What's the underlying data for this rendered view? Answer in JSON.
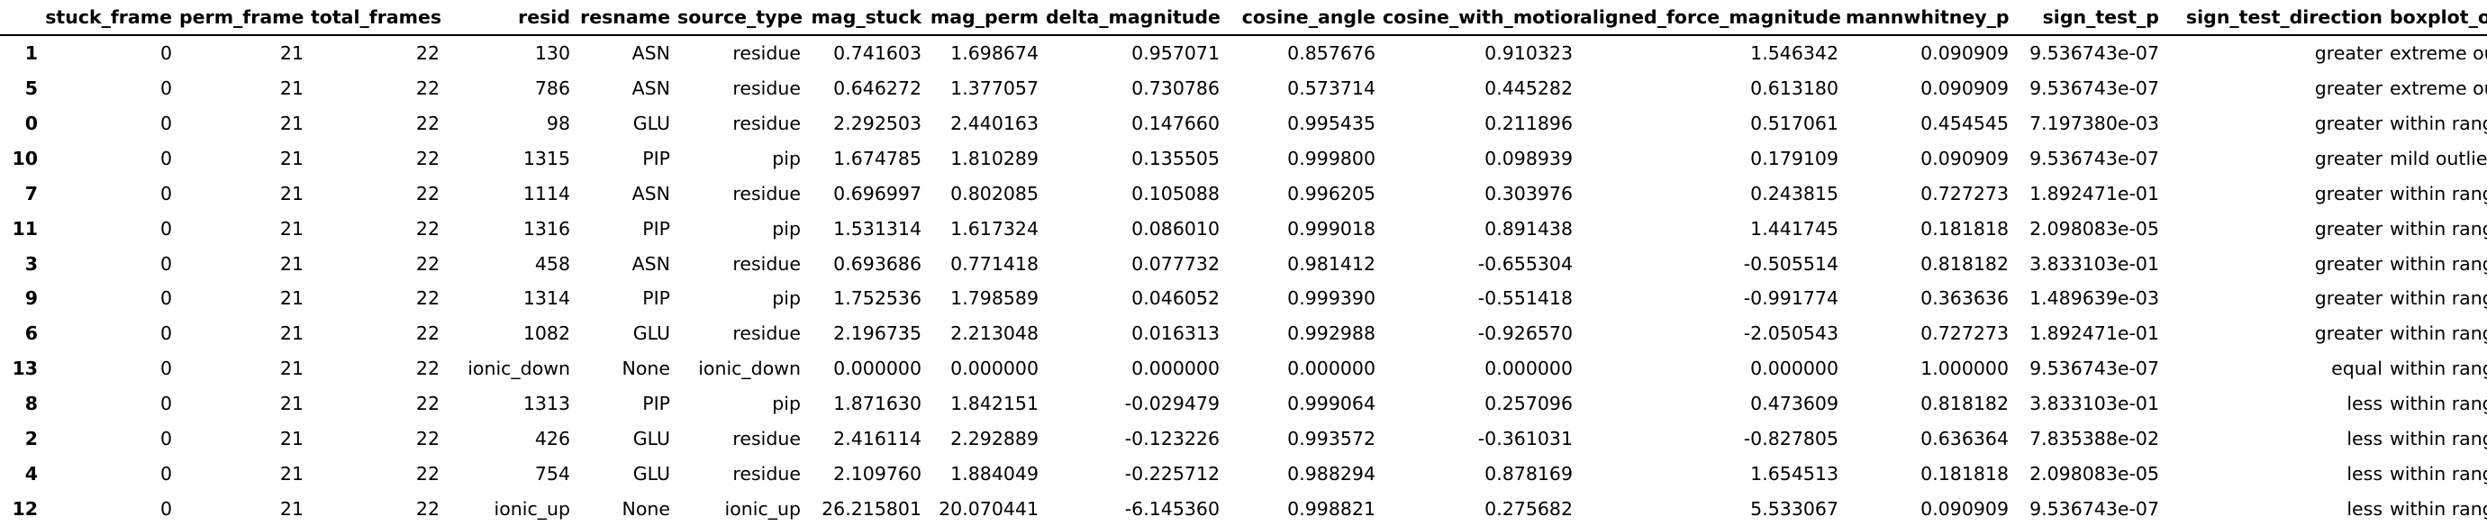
{
  "columns": [
    "",
    "stuck_frame",
    "perm_frame",
    "total_frames",
    "resid",
    "resname",
    "source_type",
    "mag_stuck",
    "mag_perm",
    "delta_magnitude",
    "cosine_angle",
    "cosine_with_motion",
    "aligned_force_magnitude",
    "mannwhitney_p",
    "sign_test_p",
    "sign_test_direction",
    "boxplot_outlier"
  ],
  "rows": [
    [
      "1",
      "0",
      "21",
      "22",
      "130",
      "ASN",
      "residue",
      "0.741603",
      "1.698674",
      "0.957071",
      "0.857676",
      "0.910323",
      "1.546342",
      "0.090909",
      "9.536743e-07",
      "greater",
      "extreme outlier"
    ],
    [
      "5",
      "0",
      "21",
      "22",
      "786",
      "ASN",
      "residue",
      "0.646272",
      "1.377057",
      "0.730786",
      "0.573714",
      "0.445282",
      "0.613180",
      "0.090909",
      "9.536743e-07",
      "greater",
      "extreme outlier"
    ],
    [
      "0",
      "0",
      "21",
      "22",
      "98",
      "GLU",
      "residue",
      "2.292503",
      "2.440163",
      "0.147660",
      "0.995435",
      "0.211896",
      "0.517061",
      "0.454545",
      "7.197380e-03",
      "greater",
      "within range"
    ],
    [
      "10",
      "0",
      "21",
      "22",
      "1315",
      "PIP",
      "pip",
      "1.674785",
      "1.810289",
      "0.135505",
      "0.999800",
      "0.098939",
      "0.179109",
      "0.090909",
      "9.536743e-07",
      "greater",
      "mild outlier"
    ],
    [
      "7",
      "0",
      "21",
      "22",
      "1114",
      "ASN",
      "residue",
      "0.696997",
      "0.802085",
      "0.105088",
      "0.996205",
      "0.303976",
      "0.243815",
      "0.727273",
      "1.892471e-01",
      "greater",
      "within range"
    ],
    [
      "11",
      "0",
      "21",
      "22",
      "1316",
      "PIP",
      "pip",
      "1.531314",
      "1.617324",
      "0.086010",
      "0.999018",
      "0.891438",
      "1.441745",
      "0.181818",
      "2.098083e-05",
      "greater",
      "within range"
    ],
    [
      "3",
      "0",
      "21",
      "22",
      "458",
      "ASN",
      "residue",
      "0.693686",
      "0.771418",
      "0.077732",
      "0.981412",
      "-0.655304",
      "-0.505514",
      "0.818182",
      "3.833103e-01",
      "greater",
      "within range"
    ],
    [
      "9",
      "0",
      "21",
      "22",
      "1314",
      "PIP",
      "pip",
      "1.752536",
      "1.798589",
      "0.046052",
      "0.999390",
      "-0.551418",
      "-0.991774",
      "0.363636",
      "1.489639e-03",
      "greater",
      "within range"
    ],
    [
      "6",
      "0",
      "21",
      "22",
      "1082",
      "GLU",
      "residue",
      "2.196735",
      "2.213048",
      "0.016313",
      "0.992988",
      "-0.926570",
      "-2.050543",
      "0.727273",
      "1.892471e-01",
      "greater",
      "within range"
    ],
    [
      "13",
      "0",
      "21",
      "22",
      "ionic_down",
      "None",
      "ionic_down",
      "0.000000",
      "0.000000",
      "0.000000",
      "0.000000",
      "0.000000",
      "0.000000",
      "1.000000",
      "9.536743e-07",
      "equal",
      "within range"
    ],
    [
      "8",
      "0",
      "21",
      "22",
      "1313",
      "PIP",
      "pip",
      "1.871630",
      "1.842151",
      "-0.029479",
      "0.999064",
      "0.257096",
      "0.473609",
      "0.818182",
      "3.833103e-01",
      "less",
      "within range"
    ],
    [
      "2",
      "0",
      "21",
      "22",
      "426",
      "GLU",
      "residue",
      "2.416114",
      "2.292889",
      "-0.123226",
      "0.993572",
      "-0.361031",
      "-0.827805",
      "0.636364",
      "7.835388e-02",
      "less",
      "within range"
    ],
    [
      "4",
      "0",
      "21",
      "22",
      "754",
      "GLU",
      "residue",
      "2.109760",
      "1.884049",
      "-0.225712",
      "0.988294",
      "0.878169",
      "1.654513",
      "0.181818",
      "2.098083e-05",
      "less",
      "within range"
    ],
    [
      "12",
      "0",
      "21",
      "22",
      "ionic_up",
      "None",
      "ionic_up",
      "26.215801",
      "20.070441",
      "-6.145360",
      "0.998821",
      "0.275682",
      "5.533067",
      "0.090909",
      "9.536743e-07",
      "less",
      "within range"
    ]
  ]
}
